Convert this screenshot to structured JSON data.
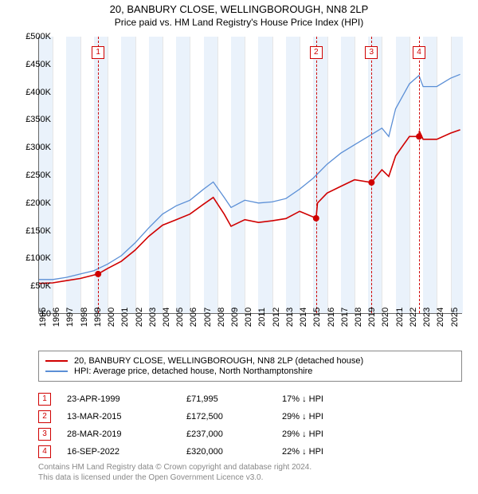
{
  "title_line1": "20, BANBURY CLOSE, WELLINGBOROUGH, NN8 2LP",
  "title_line2": "Price paid vs. HM Land Registry's House Price Index (HPI)",
  "chart": {
    "type": "line",
    "background_color": "#ffffff",
    "shade_color": "#eaf2fb",
    "grid_color": "#e6e6e6",
    "xlim": [
      1995,
      2025.9
    ],
    "ylim": [
      0,
      500000
    ],
    "ytick_step": 50000,
    "yticks": [
      "£0",
      "£50K",
      "£100K",
      "£150K",
      "£200K",
      "£250K",
      "£300K",
      "£350K",
      "£400K",
      "£450K",
      "£500K"
    ],
    "xticks": [
      1995,
      1996,
      1997,
      1998,
      1999,
      2000,
      2001,
      2002,
      2003,
      2004,
      2005,
      2006,
      2007,
      2008,
      2009,
      2010,
      2011,
      2012,
      2013,
      2014,
      2015,
      2016,
      2017,
      2018,
      2019,
      2020,
      2021,
      2022,
      2023,
      2024,
      2025
    ],
    "shaded_year_bands": [
      [
        1995,
        1996
      ],
      [
        1997,
        1998
      ],
      [
        1999,
        2000
      ],
      [
        2001,
        2002
      ],
      [
        2003,
        2004
      ],
      [
        2005,
        2006
      ],
      [
        2007,
        2008
      ],
      [
        2009,
        2010
      ],
      [
        2011,
        2012
      ],
      [
        2013,
        2014
      ],
      [
        2015,
        2016
      ],
      [
        2017,
        2018
      ],
      [
        2019,
        2020
      ],
      [
        2021,
        2022
      ],
      [
        2023,
        2024
      ],
      [
        2025,
        2025.9
      ]
    ],
    "label_fontsize": 11,
    "title_fontsize": 13
  },
  "series": {
    "hpi": {
      "label": "HPI: Average price, detached house, North Northamptonshire",
      "color": "#5b8fd6",
      "line_width": 1.3,
      "points": [
        [
          1995,
          62000
        ],
        [
          1996,
          62000
        ],
        [
          1997,
          66000
        ],
        [
          1998,
          72000
        ],
        [
          1999,
          78000
        ],
        [
          2000,
          90000
        ],
        [
          2001,
          105000
        ],
        [
          2002,
          128000
        ],
        [
          2003,
          155000
        ],
        [
          2004,
          180000
        ],
        [
          2005,
          195000
        ],
        [
          2006,
          205000
        ],
        [
          2007,
          225000
        ],
        [
          2007.7,
          238000
        ],
        [
          2008.5,
          210000
        ],
        [
          2009,
          192000
        ],
        [
          2010,
          205000
        ],
        [
          2011,
          200000
        ],
        [
          2012,
          202000
        ],
        [
          2013,
          208000
        ],
        [
          2014,
          225000
        ],
        [
          2015,
          245000
        ],
        [
          2016,
          270000
        ],
        [
          2017,
          290000
        ],
        [
          2018,
          305000
        ],
        [
          2019,
          320000
        ],
        [
          2020,
          335000
        ],
        [
          2020.5,
          320000
        ],
        [
          2021,
          370000
        ],
        [
          2022,
          415000
        ],
        [
          2022.7,
          430000
        ],
        [
          2023,
          410000
        ],
        [
          2024,
          410000
        ],
        [
          2025,
          425000
        ],
        [
          2025.7,
          432000
        ]
      ]
    },
    "property": {
      "label": "20, BANBURY CLOSE, WELLINGBOROUGH, NN8 2LP (detached house)",
      "color": "#d00000",
      "line_width": 1.6,
      "points": [
        [
          1995,
          55000
        ],
        [
          1996,
          56000
        ],
        [
          1997,
          60000
        ],
        [
          1998,
          64000
        ],
        [
          1999.3,
          71995
        ],
        [
          2000,
          82000
        ],
        [
          2001,
          95000
        ],
        [
          2002,
          115000
        ],
        [
          2003,
          140000
        ],
        [
          2004,
          160000
        ],
        [
          2005,
          170000
        ],
        [
          2006,
          180000
        ],
        [
          2007,
          198000
        ],
        [
          2007.7,
          210000
        ],
        [
          2008.5,
          180000
        ],
        [
          2009,
          158000
        ],
        [
          2010,
          170000
        ],
        [
          2011,
          165000
        ],
        [
          2012,
          168000
        ],
        [
          2013,
          172000
        ],
        [
          2014,
          185000
        ],
        [
          2015.2,
          172500
        ],
        [
          2015.3,
          200000
        ],
        [
          2016,
          218000
        ],
        [
          2017,
          230000
        ],
        [
          2018,
          242000
        ],
        [
          2019.24,
          237000
        ],
        [
          2020,
          260000
        ],
        [
          2020.5,
          248000
        ],
        [
          2021,
          285000
        ],
        [
          2022,
          320000
        ],
        [
          2022.71,
          320000
        ],
        [
          2022.72,
          330000
        ],
        [
          2023,
          315000
        ],
        [
          2024,
          315000
        ],
        [
          2025,
          326000
        ],
        [
          2025.7,
          332000
        ]
      ]
    }
  },
  "sale_markers": [
    {
      "n": "1",
      "year": 1999.31,
      "price": 71995,
      "date": "23-APR-1999",
      "price_str": "£71,995",
      "delta": "17% ↓ HPI"
    },
    {
      "n": "2",
      "year": 2015.2,
      "price": 172500,
      "date": "13-MAR-2015",
      "price_str": "£172,500",
      "delta": "29% ↓ HPI"
    },
    {
      "n": "3",
      "year": 2019.24,
      "price": 237000,
      "date": "28-MAR-2019",
      "price_str": "£237,000",
      "delta": "29% ↓ HPI"
    },
    {
      "n": "4",
      "year": 2022.71,
      "price": 320000,
      "date": "16-SEP-2022",
      "price_str": "£320,000",
      "delta": "22% ↓ HPI"
    }
  ],
  "sale_dot": {
    "color": "#d00000",
    "radius": 4
  },
  "footer": {
    "line1": "Contains HM Land Registry data © Crown copyright and database right 2024.",
    "line2": "This data is licensed under the Open Government Licence v3.0."
  }
}
